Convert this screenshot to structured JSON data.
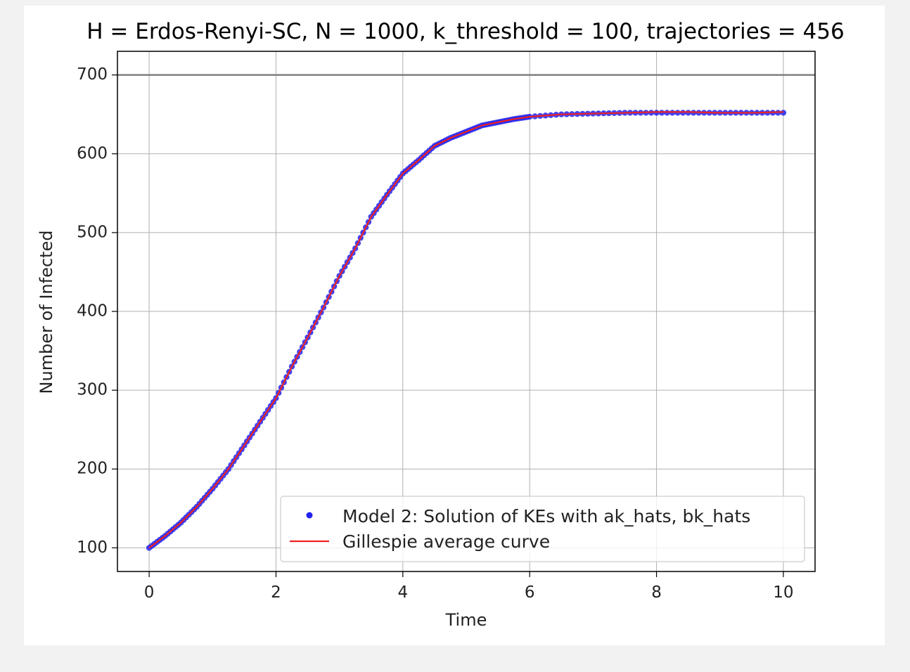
{
  "chart_data": {
    "type": "scatter",
    "title": "H = Erdos-Renyi-SC, N = 1000, k_threshold = 100, trajectories = 456",
    "xlabel": "Time",
    "ylabel": "Number of Infected",
    "xlim": [
      -0.5,
      10.5
    ],
    "ylim": [
      70,
      730
    ],
    "xticks": [
      0,
      2,
      4,
      6,
      8,
      10
    ],
    "yticks": [
      100,
      200,
      300,
      400,
      500,
      600,
      700
    ],
    "grid": true,
    "legend_position": "lower-right",
    "reference_line": {
      "y": 700,
      "color": "#808080"
    },
    "series": [
      {
        "name": "Model 2: Solution of KEs with ak_hats, bk_hats",
        "kind": "scatter",
        "color": "#2222ee",
        "x": [
          0,
          0.25,
          0.5,
          0.75,
          1,
          1.25,
          1.5,
          1.75,
          2,
          2.25,
          2.5,
          2.75,
          3,
          3.25,
          3.5,
          3.75,
          4,
          4.25,
          4.5,
          4.75,
          5,
          5.25,
          5.5,
          5.75,
          6,
          6.5,
          7,
          7.5,
          8,
          8.5,
          9,
          9.5,
          10
        ],
        "y": [
          100,
          115,
          132,
          152,
          175,
          200,
          230,
          260,
          290,
          330,
          367,
          405,
          445,
          480,
          520,
          548,
          575,
          592,
          610,
          620,
          628,
          636,
          640,
          644,
          647,
          650,
          651,
          652,
          652,
          652,
          652,
          652,
          652
        ]
      },
      {
        "name": "Gillespie average curve",
        "kind": "line",
        "color": "#ee2222",
        "x": [
          0,
          0.25,
          0.5,
          0.75,
          1,
          1.25,
          1.5,
          1.75,
          2,
          2.25,
          2.5,
          2.75,
          3,
          3.25,
          3.5,
          3.75,
          4,
          4.25,
          4.5,
          4.75,
          5,
          5.25,
          5.5,
          5.75,
          6,
          6.5,
          7,
          7.5,
          8,
          8.5,
          9,
          9.5,
          10
        ],
        "y": [
          100,
          115,
          132,
          152,
          175,
          200,
          230,
          260,
          290,
          330,
          367,
          405,
          445,
          480,
          520,
          548,
          575,
          592,
          610,
          620,
          628,
          636,
          640,
          644,
          647,
          650,
          651,
          652,
          653,
          653,
          652,
          652,
          653
        ]
      }
    ]
  }
}
